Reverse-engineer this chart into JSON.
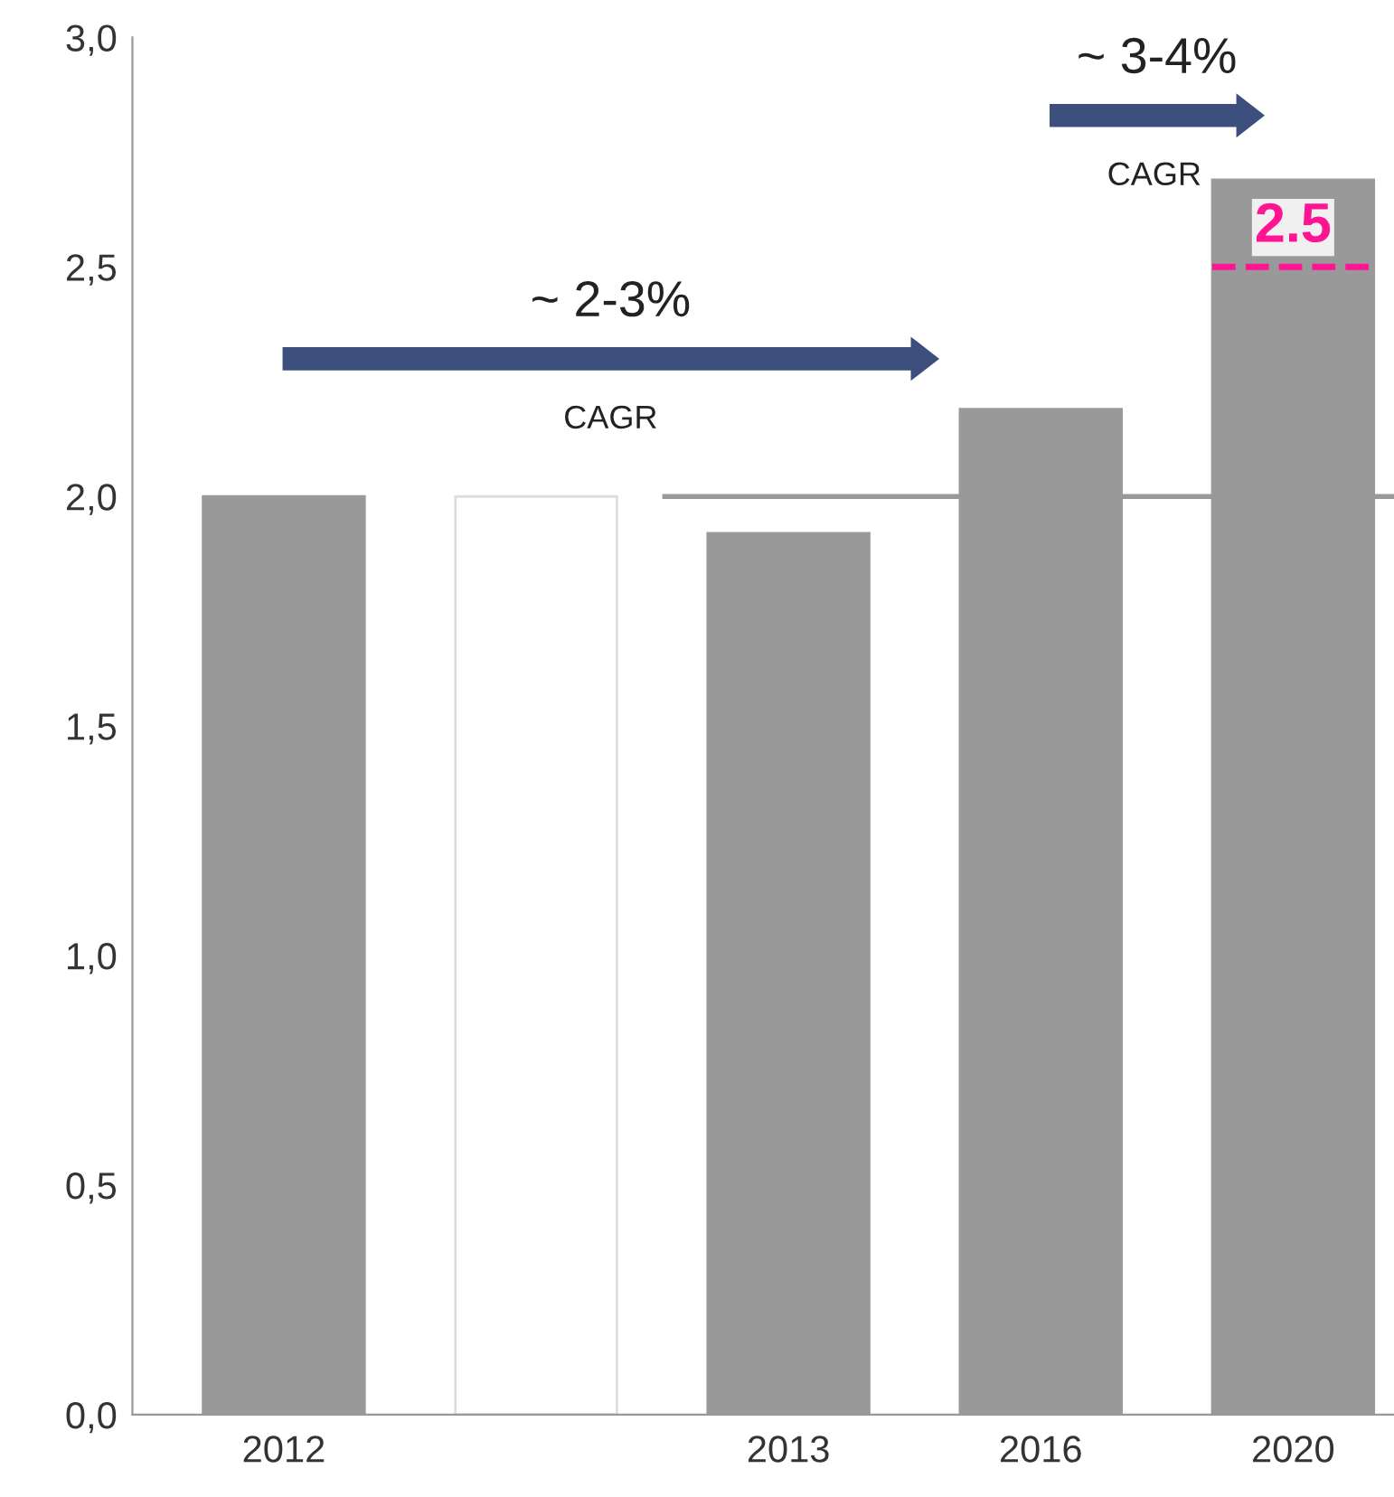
{
  "chart_data": {
    "type": "bar",
    "categories": [
      "2012",
      null,
      "2013",
      "2016",
      "2020"
    ],
    "values": [
      2.0,
      2.0,
      1.92,
      2.19,
      2.69
    ],
    "colors": [
      "#999999",
      "#ffffff",
      "#999999",
      "#999999",
      "#999999"
    ],
    "ylim": [
      0,
      3
    ],
    "yticks": [
      {
        "value": 0,
        "label": "0,0"
      },
      {
        "value": 0.5,
        "label": "0,5"
      },
      {
        "value": 1,
        "label": "1,0"
      },
      {
        "value": 1.5,
        "label": "1,5"
      },
      {
        "value": 2,
        "label": "2,0"
      },
      {
        "value": 2.5,
        "label": "2,5"
      },
      {
        "value": 3,
        "label": "3,0"
      }
    ],
    "ref_lines": [
      {
        "axis": "y",
        "value": 2.0,
        "color": "#999999"
      },
      {
        "axis": "y",
        "value": 2.5,
        "label": "2.5",
        "color": "#ff1493",
        "line_style": "dashed"
      }
    ],
    "annotations": [
      "~ 2-3%",
      "CAGR",
      "~ 3-4%",
      "CAGR"
    ],
    "grid": false,
    "legend": false
  }
}
